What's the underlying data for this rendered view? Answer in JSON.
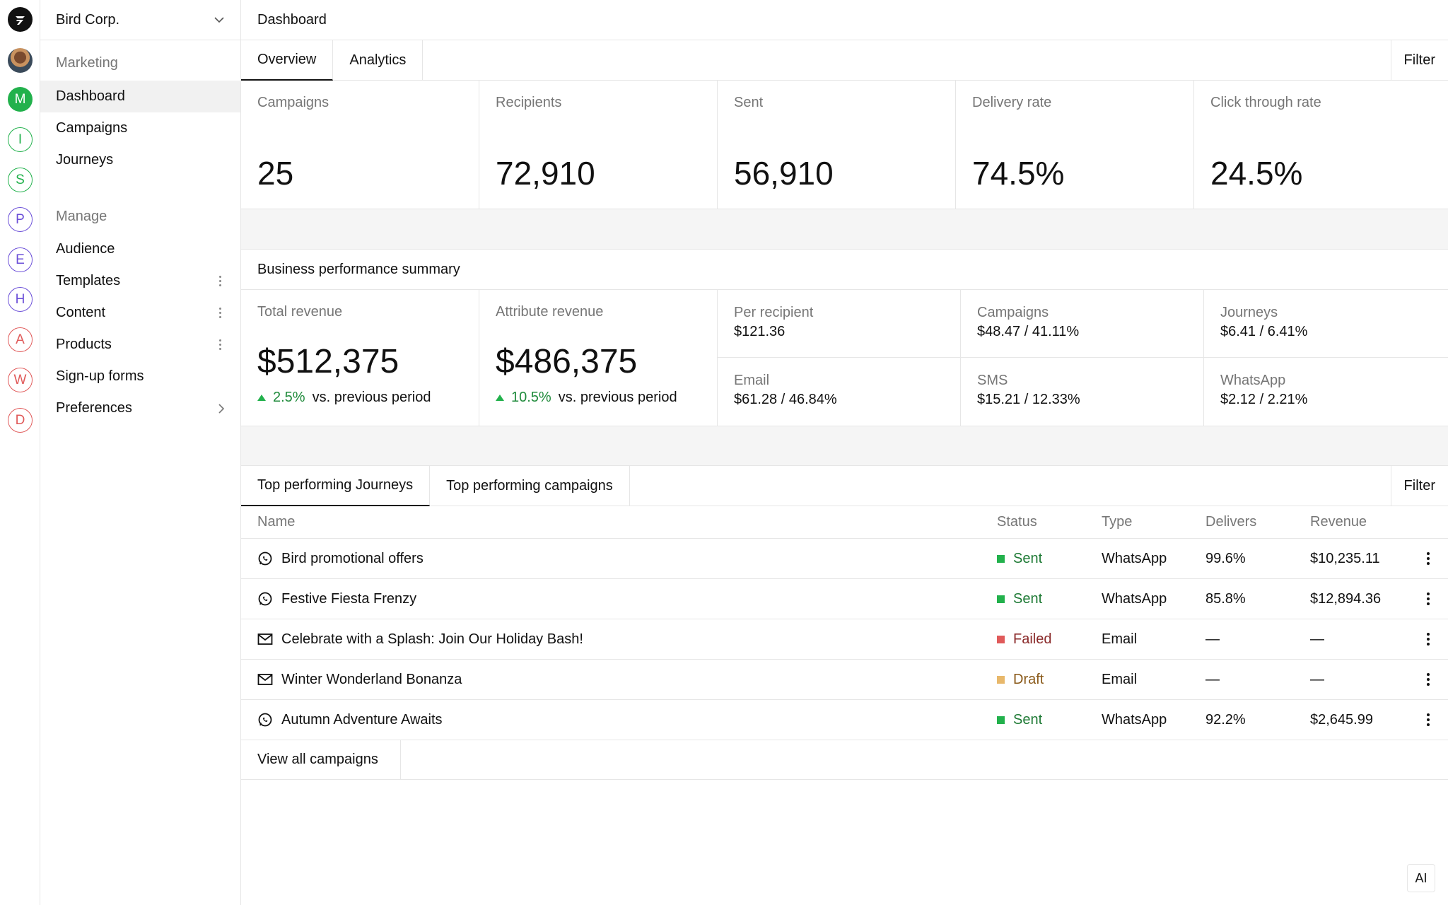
{
  "app": {
    "org_name": "Bird Corp.",
    "page_title": "Dashboard"
  },
  "workspaces": [
    {
      "letter": "M",
      "color": "#22b14c",
      "filled": true
    },
    {
      "letter": "I",
      "color": "#22b14c",
      "filled": false
    },
    {
      "letter": "S",
      "color": "#22b14c",
      "filled": false
    },
    {
      "letter": "P",
      "color": "#6b4fd8",
      "filled": false
    },
    {
      "letter": "E",
      "color": "#6b4fd8",
      "filled": false
    },
    {
      "letter": "H",
      "color": "#6b4fd8",
      "filled": false
    },
    {
      "letter": "A",
      "color": "#e05a5a",
      "filled": false
    },
    {
      "letter": "W",
      "color": "#e05a5a",
      "filled": false
    },
    {
      "letter": "D",
      "color": "#e05a5a",
      "filled": false
    }
  ],
  "nav": {
    "marketing_label": "Marketing",
    "marketing_items": [
      "Dashboard",
      "Campaigns",
      "Journeys"
    ],
    "manage_label": "Manage",
    "manage_items": [
      "Audience",
      "Templates",
      "Content",
      "Products",
      "Sign-up forms",
      "Preferences"
    ]
  },
  "tabs": {
    "overview": "Overview",
    "analytics": "Analytics",
    "filter": "Filter"
  },
  "stats": [
    {
      "label": "Campaigns",
      "value": "25"
    },
    {
      "label": "Recipients",
      "value": "72,910"
    },
    {
      "label": "Sent",
      "value": "56,910"
    },
    {
      "label": "Delivery rate",
      "value": "74.5%"
    },
    {
      "label": "Click through rate",
      "value": "24.5%"
    }
  ],
  "business": {
    "title": "Business performance summary",
    "total_revenue": {
      "label": "Total revenue",
      "value": "$512,375",
      "delta": "2.5%",
      "delta_suffix": "vs. previous period"
    },
    "attribute_revenue": {
      "label": "Attribute revenue",
      "value": "$486,375",
      "delta": "10.5%",
      "delta_suffix": "vs. previous period"
    },
    "breakdown": [
      {
        "label": "Per recipient",
        "value": "$121.36"
      },
      {
        "label": "Campaigns",
        "value": "$48.47 / 41.11%"
      },
      {
        "label": "Journeys",
        "value": "$6.41 / 6.41%"
      },
      {
        "label": "Email",
        "value": "$61.28 / 46.84%"
      },
      {
        "label": "SMS",
        "value": "$15.21 / 12.33%"
      },
      {
        "label": "WhatsApp",
        "value": "$2.12 / 2.21%"
      }
    ]
  },
  "top": {
    "tab_journeys": "Top performing Journeys",
    "tab_campaigns": "Top performing campaigns",
    "filter": "Filter",
    "columns": {
      "name": "Name",
      "status": "Status",
      "type": "Type",
      "delivers": "Delivers",
      "revenue": "Revenue"
    },
    "rows": [
      {
        "icon": "whatsapp-icon",
        "name": "Bird promotional offers",
        "status": "Sent",
        "status_color": "#22b14c",
        "status_text_color": "#1e7a35",
        "type": "WhatsApp",
        "delivers": "99.6%",
        "revenue": "$10,235.11"
      },
      {
        "icon": "whatsapp-icon",
        "name": "Festive Fiesta Frenzy",
        "status": "Sent",
        "status_color": "#22b14c",
        "status_text_color": "#1e7a35",
        "type": "WhatsApp",
        "delivers": "85.8%",
        "revenue": "$12,894.36"
      },
      {
        "icon": "mail-icon",
        "name": "Celebrate with a Splash: Join Our Holiday Bash!",
        "status": "Failed",
        "status_color": "#e05a5a",
        "status_text_color": "#8a2a2a",
        "type": "Email",
        "delivers": "—",
        "revenue": "—"
      },
      {
        "icon": "mail-icon",
        "name": "Winter Wonderland Bonanza",
        "status": "Draft",
        "status_color": "#e8b86b",
        "status_text_color": "#8a5a1a",
        "type": "Email",
        "delivers": "—",
        "revenue": "—"
      },
      {
        "icon": "whatsapp-icon",
        "name": "Autumn Adventure Awaits",
        "status": "Sent",
        "status_color": "#22b14c",
        "status_text_color": "#1e7a35",
        "type": "WhatsApp",
        "delivers": "92.2%",
        "revenue": "$2,645.99"
      }
    ],
    "view_all": "View all campaigns"
  },
  "ai_button": "AI"
}
